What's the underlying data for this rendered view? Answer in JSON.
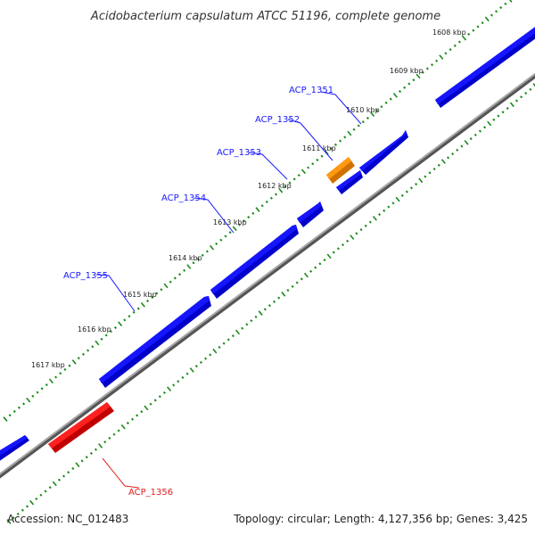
{
  "title": "Acidobacterium capsulatum ATCC 51196, complete genome",
  "footer": {
    "accession": "Accession: NC_012483",
    "summary": "Topology: circular; Length: 4,127,356 bp; Genes: 3,425"
  },
  "colors": {
    "forward_gene": "#1010e8",
    "highlight_gene": "#f08c00",
    "reverse_gene": "#ff1010",
    "backbone": "#8c8c8c",
    "tick_marks": "#1a8a1a",
    "forward_label": "#1a1aff",
    "reverse_label": "#e02020"
  },
  "ticks": [
    {
      "label": "1608 kbp"
    },
    {
      "label": "1609 kbp"
    },
    {
      "label": "1610 kbp"
    },
    {
      "label": "1611 kbp"
    },
    {
      "label": "1612 kbp"
    },
    {
      "label": "1613 kbp"
    },
    {
      "label": "1614 kbp"
    },
    {
      "label": "1615 kbp"
    },
    {
      "label": "1616 kbp"
    },
    {
      "label": "1617 kbp"
    }
  ],
  "gene_labels": [
    {
      "name": "ACP_1351",
      "strand": "forward"
    },
    {
      "name": "ACP_1352",
      "strand": "forward"
    },
    {
      "name": "ACP_1353",
      "strand": "forward"
    },
    {
      "name": "ACP_1354",
      "strand": "forward"
    },
    {
      "name": "ACP_1355",
      "strand": "forward"
    },
    {
      "name": "ACP_1356",
      "strand": "reverse"
    }
  ]
}
